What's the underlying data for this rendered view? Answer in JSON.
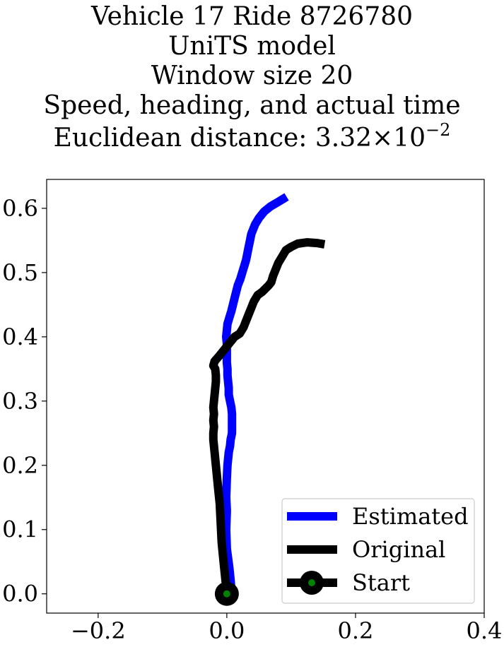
{
  "title_lines": {
    "line1": "Vehicle 17 Ride 8726780",
    "line2": "UniTS model",
    "line3": "Window size 20",
    "line4": "Speed, heading, and actual time",
    "line5_prefix": "Euclidean distance: ",
    "line5_mantissa": "3.32",
    "line5_times": "×",
    "line5_base": "10",
    "line5_exponent": "−2"
  },
  "chart_data": {
    "type": "line",
    "title": "Vehicle 17 Ride 8726780 / UniTS model / Window size 20 / Speed, heading, and actual time / Euclidean distance: 3.32×10^-2",
    "xlabel": "",
    "ylabel": "",
    "xlim": [
      -0.28,
      0.4
    ],
    "ylim": [
      -0.03,
      0.645
    ],
    "xticks": [
      -0.2,
      0.0,
      0.2,
      0.4
    ],
    "xtick_labels": [
      "−0.2",
      "0.0",
      "0.2",
      "0.4"
    ],
    "yticks": [
      0.0,
      0.1,
      0.2,
      0.3,
      0.4,
      0.5,
      0.6
    ],
    "ytick_labels": [
      "0.0",
      "0.1",
      "0.2",
      "0.3",
      "0.4",
      "0.5",
      "0.6"
    ],
    "grid": false,
    "legend_position": "lower-right",
    "series": [
      {
        "name": "Estimated",
        "color": "#0000ff",
        "x": [
          0.007,
          0.006,
          0.004,
          0.0,
          -0.001,
          0.0,
          -0.001,
          0.0,
          0.001,
          0.002,
          0.003,
          0.005,
          0.006,
          0.008,
          0.008,
          0.008,
          0.008,
          0.007,
          0.005,
          0.003,
          0.003,
          0.002,
          0.001,
          0.001,
          0.0,
          0.0,
          0.0,
          0.0,
          -0.001,
          0.0,
          0.001,
          0.004,
          0.007,
          0.012,
          0.017,
          0.021,
          0.024,
          0.027,
          0.03,
          0.032,
          0.034,
          0.036,
          0.038,
          0.044,
          0.05,
          0.058,
          0.068,
          0.08,
          0.093
        ],
        "y": [
          0.005,
          0.02,
          0.04,
          0.07,
          0.1,
          0.13,
          0.15,
          0.18,
          0.2,
          0.21,
          0.22,
          0.23,
          0.24,
          0.25,
          0.26,
          0.27,
          0.28,
          0.29,
          0.3,
          0.31,
          0.32,
          0.33,
          0.34,
          0.35,
          0.36,
          0.37,
          0.38,
          0.39,
          0.4,
          0.41,
          0.42,
          0.43,
          0.44,
          0.46,
          0.48,
          0.49,
          0.5,
          0.51,
          0.52,
          0.53,
          0.54,
          0.55,
          0.56,
          0.575,
          0.585,
          0.595,
          0.603,
          0.61,
          0.618
        ]
      },
      {
        "name": "Original",
        "color": "#000000",
        "x": [
          0.0,
          -0.002,
          -0.004,
          -0.006,
          -0.008,
          -0.009,
          -0.01,
          -0.011,
          -0.013,
          -0.015,
          -0.017,
          -0.018,
          -0.019,
          -0.02,
          -0.021,
          -0.021,
          -0.02,
          -0.021,
          -0.02,
          -0.021,
          -0.02,
          -0.019,
          -0.018,
          -0.017,
          -0.017,
          -0.018,
          -0.021,
          -0.019,
          -0.012,
          -0.004,
          0.004,
          0.012,
          0.02,
          0.026,
          0.03,
          0.034,
          0.038,
          0.042,
          0.048,
          0.055,
          0.06,
          0.065,
          0.069,
          0.072,
          0.076,
          0.08,
          0.086,
          0.092,
          0.1,
          0.11,
          0.125,
          0.14,
          0.152
        ],
        "y": [
          0.0,
          0.02,
          0.04,
          0.06,
          0.08,
          0.1,
          0.12,
          0.14,
          0.16,
          0.18,
          0.2,
          0.21,
          0.22,
          0.23,
          0.24,
          0.25,
          0.26,
          0.27,
          0.28,
          0.29,
          0.3,
          0.31,
          0.32,
          0.33,
          0.34,
          0.35,
          0.355,
          0.362,
          0.37,
          0.38,
          0.39,
          0.4,
          0.405,
          0.415,
          0.425,
          0.435,
          0.445,
          0.455,
          0.465,
          0.47,
          0.475,
          0.48,
          0.485,
          0.495,
          0.505,
          0.515,
          0.525,
          0.535,
          0.54,
          0.545,
          0.547,
          0.546,
          0.544
        ]
      },
      {
        "name": "Start",
        "color": "#000000",
        "marker_color": "#008000",
        "x": [
          0.0
        ],
        "y": [
          0.0
        ]
      }
    ]
  }
}
